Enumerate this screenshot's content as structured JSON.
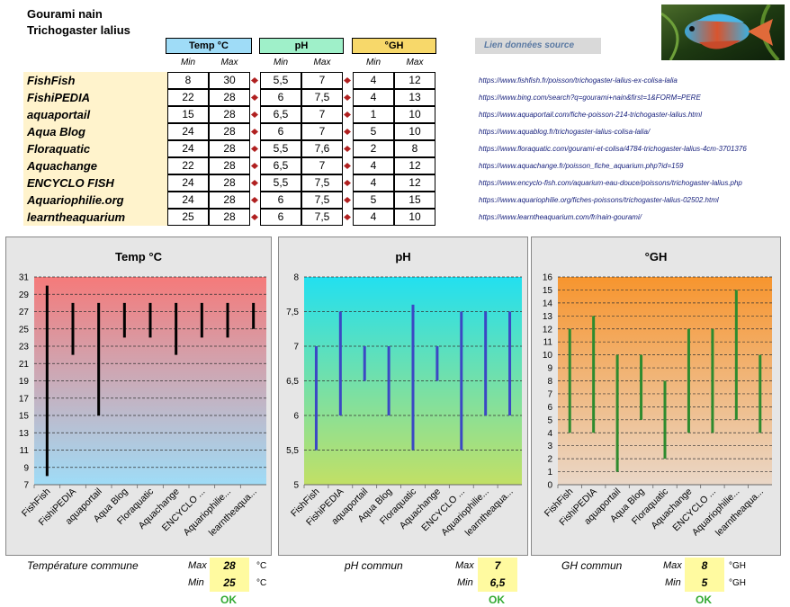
{
  "header": {
    "title_line1": "Gourami nain",
    "title_line2": "Trichogaster lalius",
    "link_button": "Lien données source"
  },
  "photo": {
    "description": "fish-photo"
  },
  "table": {
    "groups": [
      {
        "label": "Temp °C",
        "color": "#9fdcf7"
      },
      {
        "label": "pH",
        "color": "#9ff0c9"
      },
      {
        "label": "°GH",
        "color": "#f7d86a"
      }
    ],
    "sub_min": "Min",
    "sub_max": "Max",
    "rows": [
      {
        "source": "FishFish",
        "t_min": "8",
        "t_max": "30",
        "ph_min": "5,5",
        "ph_max": "7",
        "gh_min": "4",
        "gh_max": "12",
        "url": "https://www.fishfish.fr/poisson/trichogaster-lalius-ex-colisa-lalia"
      },
      {
        "source": "FishiPEDIA",
        "t_min": "22",
        "t_max": "28",
        "ph_min": "6",
        "ph_max": "7,5",
        "gh_min": "4",
        "gh_max": "13",
        "url": "https://www.bing.com/search?q=gourami+nain&first=1&FORM=PERE"
      },
      {
        "source": "aquaportail",
        "t_min": "15",
        "t_max": "28",
        "ph_min": "6,5",
        "ph_max": "7",
        "gh_min": "1",
        "gh_max": "10",
        "url": "https://www.aquaportail.com/fiche-poisson-214-trichogaster-lalius.html"
      },
      {
        "source": "Aqua Blog",
        "t_min": "24",
        "t_max": "28",
        "ph_min": "6",
        "ph_max": "7",
        "gh_min": "5",
        "gh_max": "10",
        "url": "https://www.aquablog.fr/trichogaster-lalius-colisa-lalia/"
      },
      {
        "source": "Floraquatic",
        "t_min": "24",
        "t_max": "28",
        "ph_min": "5,5",
        "ph_max": "7,6",
        "gh_min": "2",
        "gh_max": "8",
        "url": "https://www.floraquatic.com/gourami-et-colisa/4784-trichogaster-lalius-4cm-3701376"
      },
      {
        "source": "Aquachange",
        "t_min": "22",
        "t_max": "28",
        "ph_min": "6,5",
        "ph_max": "7",
        "gh_min": "4",
        "gh_max": "12",
        "url": "https://www.aquachange.fr/poisson_fiche_aquarium.php?id=159"
      },
      {
        "source": "ENCYCLO FISH",
        "t_min": "24",
        "t_max": "28",
        "ph_min": "5,5",
        "ph_max": "7,5",
        "gh_min": "4",
        "gh_max": "12",
        "url": "https://www.encyclo-fish.com/aquarium-eau-douce/poissons/trichogaster-lalius.php"
      },
      {
        "source": "Aquariophilie.org",
        "t_min": "24",
        "t_max": "28",
        "ph_min": "6",
        "ph_max": "7,5",
        "gh_min": "5",
        "gh_max": "15",
        "url": "https://www.aquariophilie.org/fiches-poissons/trichogaster-lalius-02502.html"
      },
      {
        "source": "learntheaquarium",
        "t_min": "25",
        "t_max": "28",
        "ph_min": "6",
        "ph_max": "7,5",
        "gh_min": "4",
        "gh_max": "10",
        "url": "https://www.learntheaquarium.com/fr/nain-gourami/"
      }
    ]
  },
  "chart_data": [
    {
      "type": "bar",
      "title": "Temp °C",
      "categories": [
        "FishFish",
        "FishiPEDIA",
        "aquaportail",
        "Aqua Blog",
        "Floraquatic",
        "Aquachange",
        "ENCYCLO ...",
        "Aquariophilie...",
        "learntheaqua..."
      ],
      "min": [
        8,
        22,
        15,
        24,
        24,
        22,
        24,
        24,
        25
      ],
      "max": [
        30,
        28,
        28,
        28,
        28,
        28,
        28,
        28,
        28
      ],
      "ylim": [
        7,
        31
      ],
      "yticks": [
        7,
        9,
        11,
        13,
        15,
        17,
        19,
        21,
        23,
        25,
        27,
        29,
        31
      ],
      "ytick_labels": [
        "7",
        "9",
        "11",
        "13",
        "15",
        "17",
        "19",
        "21",
        "23",
        "25",
        "27",
        "29",
        "31"
      ],
      "bar_color": "#000000",
      "bg_top": "#f57a7a",
      "bg_bottom": "#9fdcf7",
      "grid": true
    },
    {
      "type": "bar",
      "title": "pH",
      "categories": [
        "FishFish",
        "FishiPEDIA",
        "aquaportail",
        "Aqua Blog",
        "Floraquatic",
        "Aquachange",
        "ENCYCLO ...",
        "Aquariophilie...",
        "learntheaqua..."
      ],
      "min": [
        5.5,
        6,
        6.5,
        6,
        5.5,
        6.5,
        5.5,
        6,
        6
      ],
      "max": [
        7,
        7.5,
        7,
        7,
        7.6,
        7,
        7.5,
        7.5,
        7.5
      ],
      "ylim": [
        5,
        8
      ],
      "yticks": [
        5,
        5.5,
        6,
        6.5,
        7,
        7.5,
        8
      ],
      "ytick_labels": [
        "5",
        "5,5",
        "6",
        "6,5",
        "7",
        "7,5",
        "8"
      ],
      "bar_color": "#3b48c4",
      "bg_top": "#22e0f0",
      "bg_bottom": "#c2e065",
      "grid": true
    },
    {
      "type": "bar",
      "title": "°GH",
      "categories": [
        "FishFish",
        "FishiPEDIA",
        "aquaportail",
        "Aqua Blog",
        "Floraquatic",
        "Aquachange",
        "ENCYCLO ...",
        "Aquariophilie...",
        "learntheaqua..."
      ],
      "min": [
        4,
        4,
        1,
        5,
        2,
        4,
        4,
        5,
        4
      ],
      "max": [
        12,
        13,
        10,
        10,
        8,
        12,
        12,
        15,
        10
      ],
      "ylim": [
        0,
        16
      ],
      "yticks": [
        0,
        1,
        2,
        3,
        4,
        5,
        6,
        7,
        8,
        9,
        10,
        11,
        12,
        13,
        14,
        15,
        16
      ],
      "ytick_labels": [
        "0",
        "1",
        "2",
        "3",
        "4",
        "5",
        "6",
        "7",
        "8",
        "9",
        "10",
        "11",
        "12",
        "13",
        "14",
        "15",
        "16"
      ],
      "bar_color": "#2e8b2e",
      "bg_top": "#f7952e",
      "bg_bottom": "#ead7c7",
      "grid": true
    }
  ],
  "summary": {
    "temp": {
      "label": "Température commune",
      "max_label": "Max",
      "max": "28",
      "min_label": "Min",
      "min": "25",
      "unit": "°C",
      "status": "OK"
    },
    "ph": {
      "label": "pH commun",
      "max_label": "Max",
      "max": "7",
      "min_label": "Min",
      "min": "6,5",
      "status": "OK"
    },
    "gh": {
      "label": "GH commun",
      "max_label": "Max",
      "max": "8",
      "min_label": "Min",
      "min": "5",
      "unit": "°GH",
      "status": "OK"
    }
  }
}
